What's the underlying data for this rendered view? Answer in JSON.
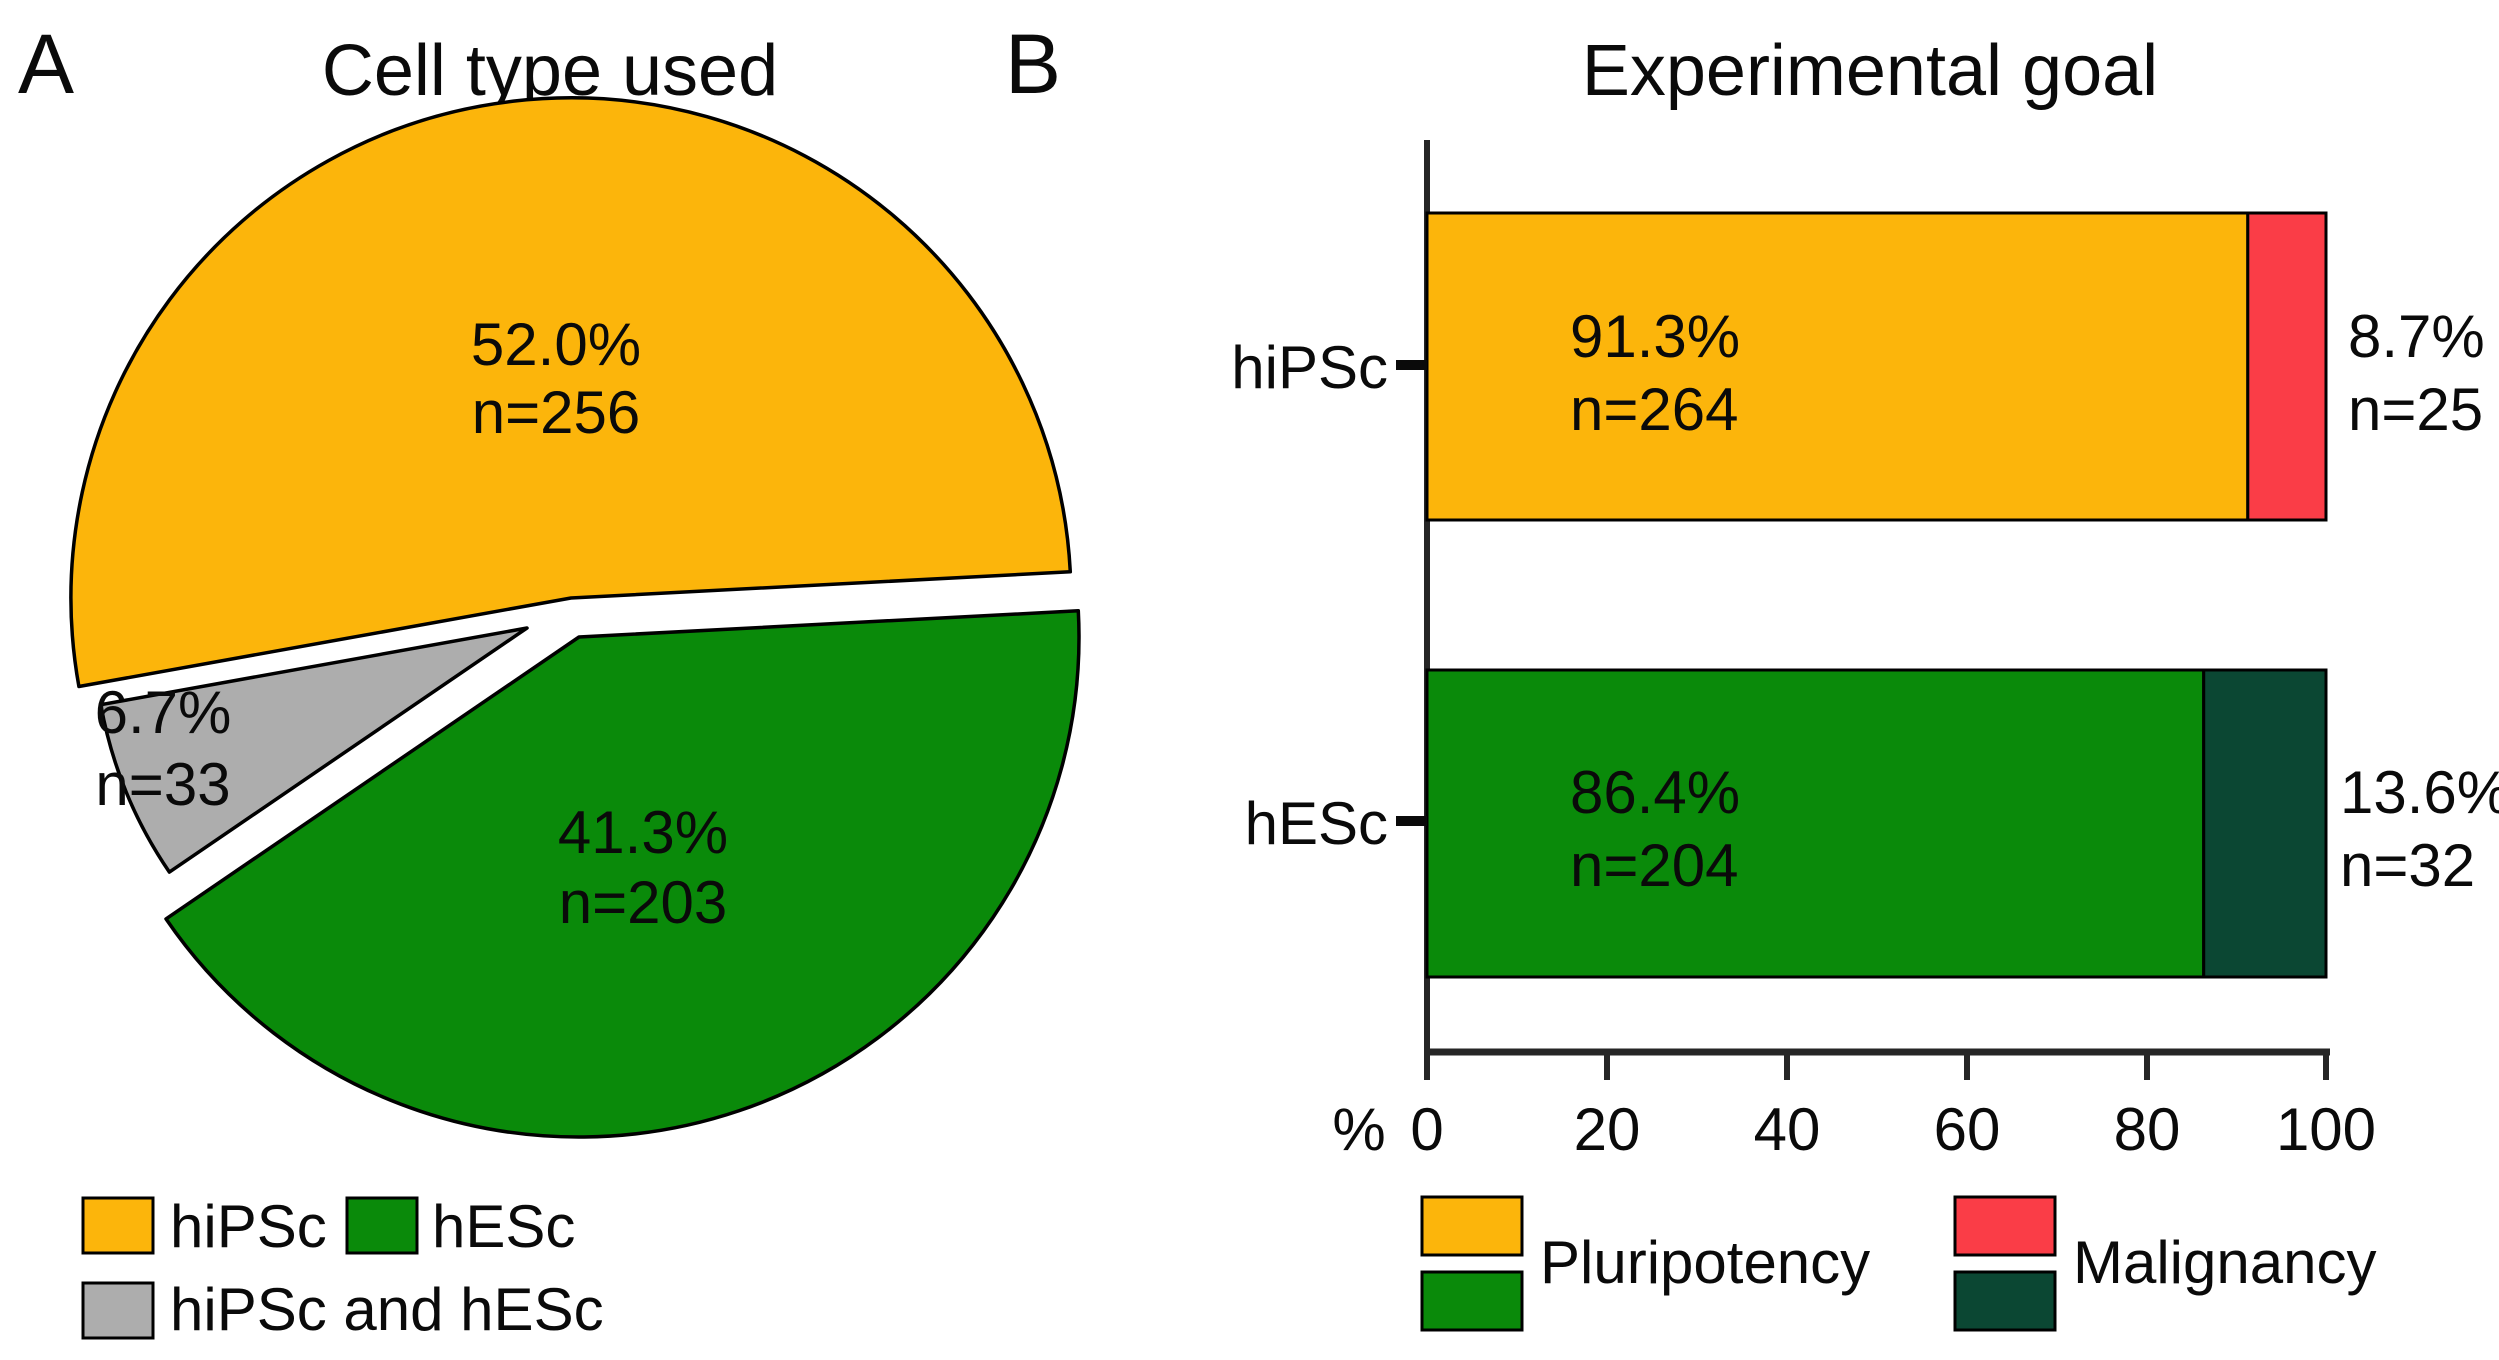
{
  "panels": {
    "a": "A",
    "b": "B"
  },
  "colors": {
    "orange": "#FCB50B",
    "green": "#0A8A0A",
    "gray": "#ADADAD",
    "red": "#FA3D47",
    "dark_green": "#0B4733",
    "axis": "#262626",
    "outline": "#000000"
  },
  "chart_data": [
    {
      "type": "pie",
      "title": "Cell type used",
      "start_angle_deg": 3,
      "direction": "counterclockwise",
      "slices": [
        {
          "name": "hiPSc",
          "percent": 52.0,
          "n": 256,
          "color": "#FCB50B",
          "label_lines": [
            "52.0%",
            "n=256"
          ],
          "label_color": "#000000"
        },
        {
          "name": "hiPSc and hESc",
          "percent": 6.7,
          "n": 33,
          "color": "#ADADAD",
          "label_lines": [
            "6.7%",
            "n=33"
          ],
          "label_color": "#000000"
        },
        {
          "name": "hESc",
          "percent": 41.3,
          "n": 203,
          "color": "#0A8A0A",
          "label_lines": [
            "41.3%",
            "n=203"
          ],
          "label_color": "#FFFFFF"
        }
      ],
      "legend": [
        {
          "label": "hiPSc",
          "color": "#FCB50B"
        },
        {
          "label": "hESc",
          "color": "#0A8A0A"
        },
        {
          "label": "hiPSc and hESc",
          "color": "#ADADAD"
        }
      ]
    },
    {
      "type": "stacked_bar_horizontal",
      "title": "Experimental goal",
      "xlabel": "%",
      "xlim": [
        0,
        100
      ],
      "ticks": [
        0,
        20,
        40,
        60,
        80,
        100
      ],
      "grid": false,
      "categories": [
        "hiPSc",
        "hESc"
      ],
      "series": [
        {
          "name": "Pluripotency",
          "values": [
            91.3,
            86.4
          ],
          "colors": [
            "#FCB50B",
            "#0A8A0A"
          ]
        },
        {
          "name": "Malignancy",
          "values": [
            8.7,
            13.6
          ],
          "colors": [
            "#FA3D47",
            "#0B4733"
          ]
        }
      ],
      "bar_labels": [
        {
          "inside": [
            "91.3%",
            "n=264"
          ],
          "inside_color": "#000000",
          "outside": [
            "8.7%",
            "n=25"
          ],
          "outside_color": "#000000"
        },
        {
          "inside": [
            "86.4%",
            "n=204"
          ],
          "inside_color": "#FFFFFF",
          "outside": [
            "13.6%",
            "n=32"
          ],
          "outside_color": "#000000"
        }
      ],
      "legend": [
        {
          "label": "Pluripotency",
          "colors": [
            "#FCB50B",
            "#0A8A0A"
          ]
        },
        {
          "label": "Malignancy",
          "colors": [
            "#FA3D47",
            "#0B4733"
          ]
        }
      ],
      "legend_position": "bottom"
    }
  ]
}
